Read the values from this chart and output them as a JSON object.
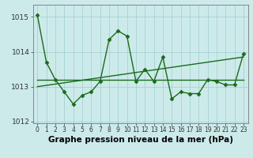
{
  "x": [
    0,
    1,
    2,
    3,
    4,
    5,
    6,
    7,
    8,
    9,
    10,
    11,
    12,
    13,
    14,
    15,
    16,
    17,
    18,
    19,
    20,
    21,
    22,
    23
  ],
  "y": [
    1015.05,
    1013.7,
    1013.2,
    1012.85,
    1012.5,
    1012.75,
    1012.85,
    1013.15,
    1014.35,
    1014.6,
    1014.45,
    1013.15,
    1013.5,
    1013.15,
    1013.85,
    1012.65,
    1012.85,
    1012.8,
    1012.8,
    1013.2,
    1013.15,
    1013.05,
    1013.05,
    1013.95
  ],
  "trend_x": [
    0,
    23
  ],
  "trend_y": [
    1013.2,
    1013.2
  ],
  "trend2_x": [
    0,
    23
  ],
  "trend2_y": [
    1013.0,
    1013.85
  ],
  "ylim": [
    1011.95,
    1015.35
  ],
  "xlim": [
    -0.5,
    23.5
  ],
  "yticks": [
    1012,
    1013,
    1014,
    1015
  ],
  "xticks": [
    0,
    1,
    2,
    3,
    4,
    5,
    6,
    7,
    8,
    9,
    10,
    11,
    12,
    13,
    14,
    15,
    16,
    17,
    18,
    19,
    20,
    21,
    22,
    23
  ],
  "line_color": "#1a6b1a",
  "bg_color": "#cdeaea",
  "grid_color": "#9ecece",
  "xlabel": "Graphe pression niveau de la mer (hPa)",
  "marker_size": 2.5,
  "line_width": 1.0,
  "xlabel_fontsize": 7.5,
  "ytick_fontsize": 6.5,
  "xtick_fontsize": 5.5
}
